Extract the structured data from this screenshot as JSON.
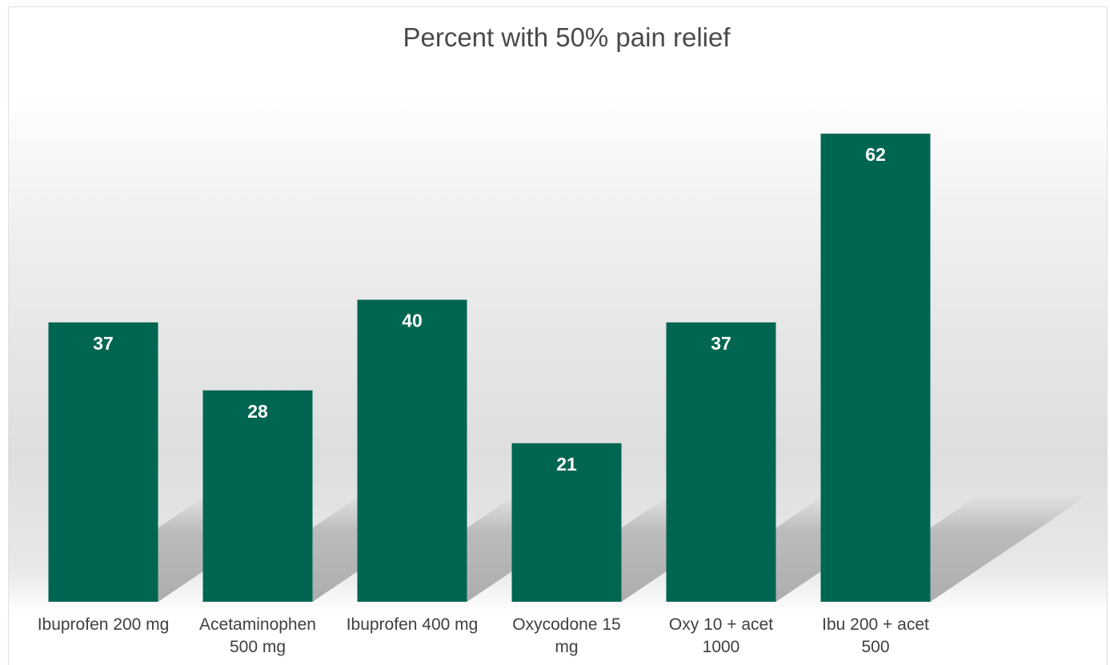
{
  "chart_data": {
    "type": "bar",
    "title": "Percent with 50% pain relief",
    "categories": [
      [
        "Ibuprofen 200 mg"
      ],
      [
        "Acetaminophen",
        "500 mg"
      ],
      [
        "Ibuprofen 400 mg"
      ],
      [
        "Oxycodone 15",
        "mg"
      ],
      [
        "Oxy 10 + acet",
        "1000"
      ],
      [
        "Ibu 200 + acet",
        "500"
      ]
    ],
    "values": [
      37,
      28,
      40,
      21,
      37,
      62
    ],
    "ylim": [
      0,
      62
    ],
    "grid": false,
    "legend": "none",
    "bar_color": "#006652",
    "label_color": "#ffffff"
  }
}
